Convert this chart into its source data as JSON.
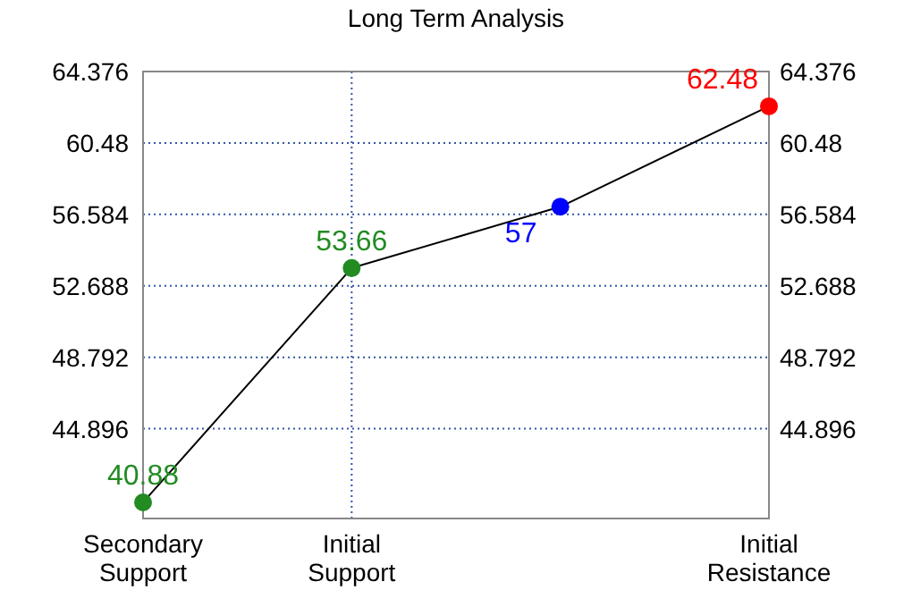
{
  "chart_data": {
    "type": "line",
    "title": "Long Term Analysis",
    "categories": [
      "Secondary\nSupport",
      "Initial\nSupport",
      null,
      "Initial\nResistance"
    ],
    "ylim": [
      40,
      64.376
    ],
    "yticks": [
      44.896,
      48.792,
      52.688,
      56.584,
      60.48,
      64.376
    ],
    "y2lim": [
      40,
      64.376
    ],
    "y2ticks": [
      44.896,
      48.792,
      52.688,
      56.584,
      60.48,
      64.376
    ],
    "series": [
      {
        "color": "#000000",
        "colors": [
          "#228b22",
          "#228b22",
          "#0000ff",
          "#ff0000"
        ],
        "values": [
          40.88,
          53.66,
          57,
          62.48
        ]
      }
    ],
    "marker": "circle",
    "line_style": "solid",
    "grid": true,
    "data_labels": true
  }
}
